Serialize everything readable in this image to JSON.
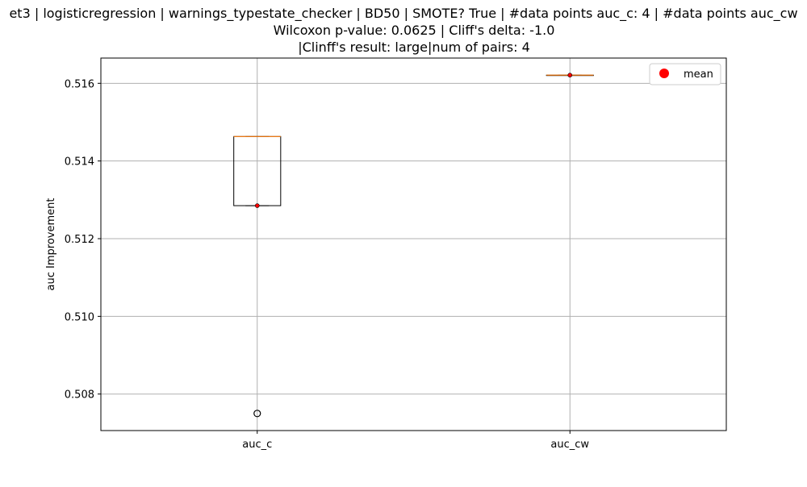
{
  "chart_data": {
    "type": "box",
    "title_lines": [
      "et3 | logisticregression | warnings_typestate_checker | BD50 | SMOTE? True | #data points auc_c: 4 | #data points auc_cw",
      "Wilcoxon p-value: 0.0625 | Cliff's delta: -1.0",
      "|Clinff's result: large|num of pairs: 4"
    ],
    "ylabel": "auc Improvement",
    "xlabel": "",
    "ylim": [
      0.50706,
      0.51665
    ],
    "yticks": [
      0.508,
      0.51,
      0.512,
      0.514,
      0.516
    ],
    "ytick_labels": [
      "0.508",
      "0.510",
      "0.512",
      "0.514",
      "0.516"
    ],
    "grid": true,
    "categories": [
      "auc_c",
      "auc_cw"
    ],
    "boxes": [
      {
        "label": "auc_c",
        "q1": 0.51285,
        "median": 0.51463,
        "q3": 0.51463,
        "whisker_low": 0.51285,
        "whisker_high": 0.51463,
        "mean": 0.51285,
        "outliers": [
          0.5075
        ]
      },
      {
        "label": "auc_cw",
        "q1": 0.51621,
        "median": 0.51621,
        "q3": 0.51621,
        "whisker_low": 0.51621,
        "whisker_high": 0.51621,
        "mean": 0.51621,
        "outliers": []
      }
    ],
    "legend": {
      "entries": [
        "mean"
      ],
      "placement": "top-right"
    },
    "colors": {
      "mean": "#ff0000",
      "median": "#ff7f0e",
      "box": "#000000",
      "grid": "#b0b0b0"
    }
  }
}
